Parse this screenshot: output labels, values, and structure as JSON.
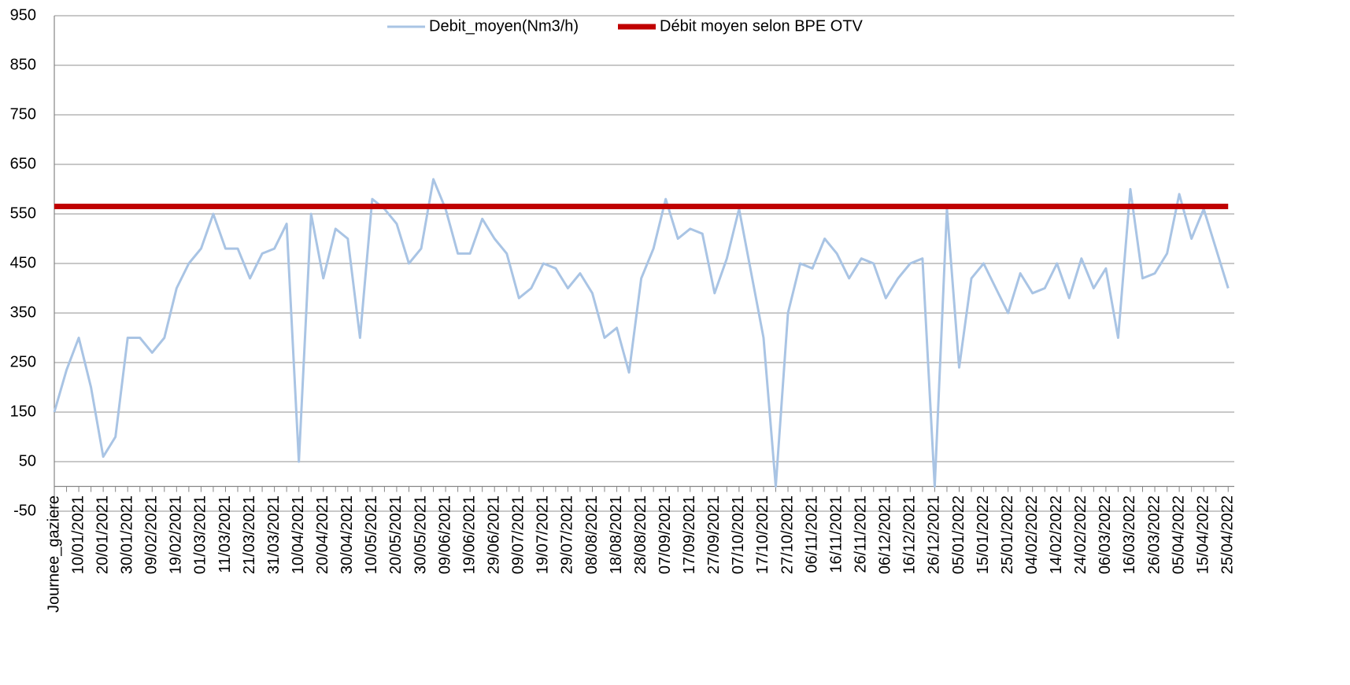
{
  "chart_data": {
    "type": "line",
    "categories": [
      "Journee_gaziere",
      null,
      "10/01/2021",
      null,
      "20/01/2021",
      null,
      "30/01/2021",
      null,
      "09/02/2021",
      null,
      "19/02/2021",
      null,
      "01/03/2021",
      null,
      "11/03/2021",
      null,
      "21/03/2021",
      null,
      "31/03/2021",
      null,
      "10/04/2021",
      null,
      "20/04/2021",
      null,
      "30/04/2021",
      null,
      "10/05/2021",
      null,
      "20/05/2021",
      null,
      "30/05/2021",
      null,
      "09/06/2021",
      null,
      "19/06/2021",
      null,
      "29/06/2021",
      null,
      "09/07/2021",
      null,
      "19/07/2021",
      null,
      "29/07/2021",
      null,
      "08/08/2021",
      null,
      "18/08/2021",
      null,
      "28/08/2021",
      null,
      "07/09/2021",
      null,
      "17/09/2021",
      null,
      "27/09/2021",
      null,
      "07/10/2021",
      null,
      "17/10/2021",
      null,
      "27/10/2021",
      null,
      "06/11/2021",
      null,
      "16/11/2021",
      null,
      "26/11/2021",
      null,
      "06/12/2021",
      null,
      "16/12/2021",
      null,
      "26/12/2021",
      null,
      "05/01/2022",
      null,
      "15/01/2022",
      null,
      "25/01/2022",
      null,
      "04/02/2022",
      null,
      "14/02/2022",
      null,
      "24/02/2022",
      null,
      "06/03/2022",
      null,
      "16/03/2022",
      null,
      "26/03/2022",
      null,
      "05/04/2022",
      null,
      "15/04/2022",
      null,
      "25/04/2022"
    ],
    "series": [
      {
        "name": "Debit_moyen(Nm3/h)",
        "color": "#a9c4e4",
        "values": [
          150,
          235,
          300,
          200,
          60,
          100,
          300,
          300,
          270,
          300,
          400,
          450,
          480,
          550,
          480,
          480,
          420,
          470,
          480,
          530,
          50,
          550,
          420,
          520,
          500,
          300,
          580,
          560,
          530,
          450,
          480,
          620,
          560,
          470,
          470,
          540,
          500,
          470,
          380,
          400,
          450,
          440,
          400,
          430,
          390,
          300,
          320,
          230,
          420,
          480,
          580,
          500,
          520,
          510,
          390,
          460,
          560,
          430,
          300,
          0,
          350,
          450,
          440,
          500,
          470,
          420,
          460,
          450,
          380,
          420,
          450,
          460,
          0,
          560,
          240,
          420,
          450,
          400,
          350,
          430,
          390,
          400,
          450,
          380,
          460,
          400,
          440,
          300,
          600,
          420,
          430,
          470,
          590,
          500,
          560,
          480,
          400
        ]
      },
      {
        "name": "Débit moyen selon BPE OTV",
        "color": "#c00000",
        "values": [
          565,
          565,
          565,
          565,
          565,
          565,
          565,
          565,
          565,
          565,
          565,
          565,
          565,
          565,
          565,
          565,
          565,
          565,
          565,
          565,
          565,
          565,
          565,
          565,
          565,
          565,
          565,
          565,
          565,
          565,
          565,
          565,
          565,
          565,
          565,
          565,
          565,
          565,
          565,
          565,
          565,
          565,
          565,
          565,
          565,
          565,
          565,
          565,
          565,
          565,
          565,
          565,
          565,
          565,
          565,
          565,
          565,
          565,
          565,
          565,
          565,
          565,
          565,
          565,
          565,
          565,
          565,
          565,
          565,
          565,
          565,
          565,
          565,
          565,
          565,
          565,
          565,
          565,
          565,
          565,
          565,
          565,
          565,
          565,
          565,
          565,
          565,
          565,
          565,
          565,
          565,
          565,
          565,
          565,
          565,
          565,
          565
        ]
      }
    ],
    "ylim": [
      -50,
      950
    ],
    "yticks": [
      -50,
      50,
      150,
      250,
      350,
      450,
      550,
      650,
      750,
      850,
      950
    ],
    "grid": true,
    "legend": "top"
  }
}
